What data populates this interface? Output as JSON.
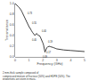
{
  "chart_data": {
    "type": "line",
    "xlabel": "Frequency (GHz)",
    "ylabel": "Transmittance",
    "caption": "2 mm-thick sample composed of\ncompressed mixture of fructose (50%) and HDPE (50%). The\nproportions are given in mass.",
    "x": [
      0.0,
      0.03,
      0.06,
      0.1,
      0.15,
      0.2,
      0.28,
      0.35,
      0.42,
      0.5,
      0.55,
      0.6,
      0.65,
      0.7,
      0.72,
      0.75,
      0.8,
      0.85,
      0.9,
      0.95,
      1.0,
      1.03,
      1.05,
      1.08,
      1.12,
      1.18,
      1.25,
      1.3,
      1.35,
      1.4,
      1.43,
      1.46,
      1.5,
      1.55,
      1.58,
      1.62,
      1.65,
      1.68,
      1.72,
      1.75,
      1.8,
      1.88,
      1.95,
      2.0,
      2.05,
      2.1,
      2.13,
      2.15,
      2.18,
      2.22,
      2.28,
      2.35,
      2.42,
      2.5,
      2.55,
      2.6,
      2.7,
      2.8,
      2.85,
      2.9,
      3.0,
      3.2,
      3.5,
      4.0,
      4.5,
      5.0
    ],
    "values": [
      1.0,
      0.99,
      0.98,
      0.97,
      0.96,
      0.95,
      0.93,
      0.91,
      0.88,
      0.84,
      0.81,
      0.78,
      0.76,
      0.74,
      0.73,
      0.71,
      0.68,
      0.65,
      0.61,
      0.58,
      0.56,
      0.55,
      0.55,
      0.54,
      0.52,
      0.49,
      0.46,
      0.44,
      0.42,
      0.41,
      0.4,
      0.41,
      0.43,
      0.44,
      0.43,
      0.41,
      0.4,
      0.4,
      0.4,
      0.4,
      0.38,
      0.34,
      0.3,
      0.26,
      0.22,
      0.15,
      0.11,
      0.09,
      0.11,
      0.14,
      0.17,
      0.19,
      0.2,
      0.2,
      0.19,
      0.19,
      0.18,
      0.17,
      0.17,
      0.16,
      0.15,
      0.14,
      0.13,
      0.12,
      0.11,
      0.1
    ],
    "color": "#111111",
    "xlim": [
      0,
      5
    ],
    "ylim": [
      0,
      1.0
    ],
    "xticks": [
      0,
      1,
      2,
      3,
      4,
      5
    ],
    "yticks": [
      {
        "value": 0,
        "label": "0.0"
      },
      0.2,
      0.4,
      0.6,
      0.8,
      {
        "value": 1,
        "label": "1.0"
      }
    ],
    "grid": false,
    "annotations": [
      {
        "x": 0.72,
        "y": 0.73,
        "text": "0.73"
      },
      {
        "x": 1.05,
        "y": 0.55,
        "text": "0.55"
      },
      {
        "x": 1.42,
        "y": 0.4,
        "text": "0.40"
      },
      {
        "x": 1.75,
        "y": 0.4,
        "text": "0.40"
      },
      {
        "x": 2.15,
        "y": 0.09,
        "text": "0.09"
      },
      {
        "x": 2.55,
        "y": 0.19,
        "text": "0.19"
      },
      {
        "x": 2.85,
        "y": 0.17,
        "text": "0.17"
      }
    ]
  }
}
